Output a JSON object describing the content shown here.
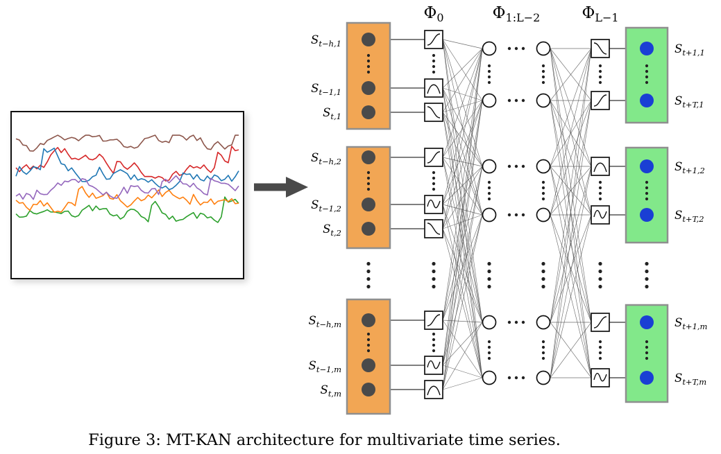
{
  "caption": "Figure 3: MT-KAN architecture for multivariate time series.",
  "colors": {
    "arrow": "#4a4a4a"
  },
  "plot": {
    "series_colors": [
      "#d62728",
      "#2ca02c",
      "#ff7f0e",
      "#1f77b4",
      "#9467bd",
      "#8c564b"
    ]
  },
  "network": {
    "layer_labels": [
      {
        "main": "Φ",
        "sub": "0"
      },
      {
        "main": "Φ",
        "sub": "1:L−2"
      },
      {
        "main": "Φ",
        "sub": "L−1"
      }
    ],
    "input_labels": [
      {
        "main": "S",
        "sub": "t−h,1"
      },
      {
        "main": "S",
        "sub": "t−1,1"
      },
      {
        "main": "S",
        "sub": "t,1"
      },
      {
        "main": "S",
        "sub": "t−h,2"
      },
      {
        "main": "S",
        "sub": "t−1,2"
      },
      {
        "main": "S",
        "sub": "t,2"
      },
      {
        "main": "S",
        "sub": "t−h,m"
      },
      {
        "main": "S",
        "sub": "t−1,m"
      },
      {
        "main": "S",
        "sub": "t,m"
      }
    ],
    "output_labels": [
      {
        "main": "S",
        "sub": "t+1,1"
      },
      {
        "main": "S",
        "sub": "t+T,1"
      },
      {
        "main": "S",
        "sub": "t+1,2"
      },
      {
        "main": "S",
        "sub": "t+T,2"
      },
      {
        "main": "S",
        "sub": "t+1,m"
      },
      {
        "main": "S",
        "sub": "t+T,m"
      }
    ],
    "colors": {
      "input_block": "#f2a654",
      "output_block": "#82e88a",
      "block_border": "#8f8f8f",
      "input_node": "#4a4a4a",
      "output_node": "#1a3fd4"
    }
  }
}
